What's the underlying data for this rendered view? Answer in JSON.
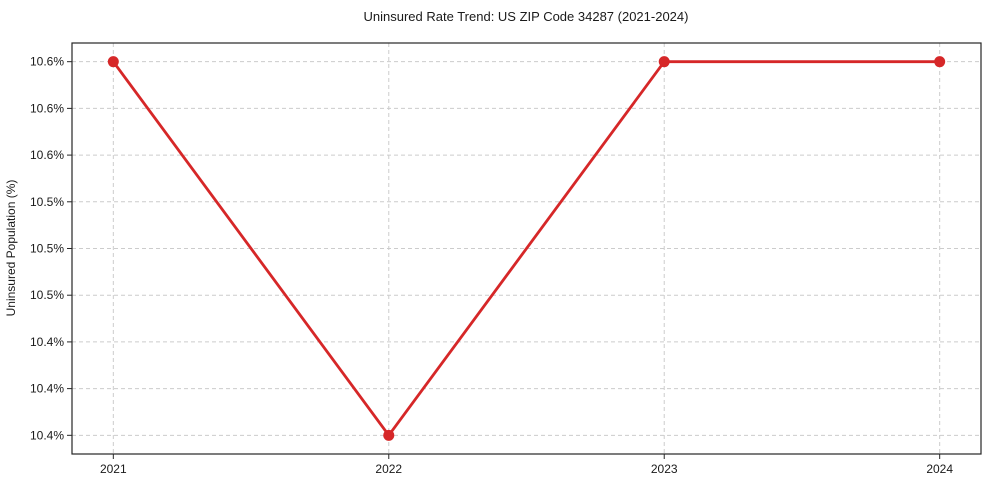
{
  "chart_data": {
    "type": "line",
    "title": "Uninsured Rate Trend: US ZIP Code 34287 (2021-2024)",
    "ylabel": "Uninsured Population (%)",
    "xlabel": "",
    "categories": [
      "2021",
      "2022",
      "2023",
      "2024"
    ],
    "values": [
      10.6,
      10.4,
      10.6,
      10.6
    ],
    "value_labels": [
      "10.6%",
      "10.4%",
      "10.6%",
      "10.6%"
    ],
    "ylim": [
      10.39,
      10.61
    ],
    "ytick_values": [
      10.4,
      10.425,
      10.45,
      10.475,
      10.5,
      10.525,
      10.55,
      10.575,
      10.6
    ],
    "ytick_labels": [
      "10.4%",
      "10.4%",
      "10.4%",
      "10.5%",
      "10.5%",
      "10.5%",
      "10.6%",
      "10.6%",
      "10.6%"
    ],
    "x_margin": 0.15,
    "grid": "dashed",
    "legend": "none",
    "marker": "circle",
    "line_color": "#d62728",
    "grid_color": "#cccccc",
    "axis_color": "#262626",
    "text_color": "#1a1a1a",
    "background_color": "#ffffff"
  }
}
